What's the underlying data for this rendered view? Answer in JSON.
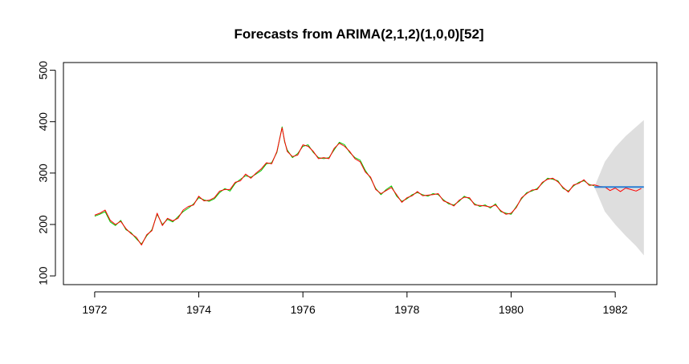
{
  "chart_data": {
    "type": "line",
    "title": "Forecasts from ARIMA(2,1,2)(1,0,0)[52]",
    "xlabel": "",
    "ylabel": "",
    "xlim": [
      1971.4,
      1982.8
    ],
    "ylim": [
      83,
      515
    ],
    "xticks": [
      1972,
      1974,
      1976,
      1978,
      1980,
      1982
    ],
    "xtick_labels": [
      "1972",
      "1974",
      "1976",
      "1978",
      "1980",
      "1982"
    ],
    "yticks": [
      100,
      200,
      300,
      400,
      500
    ],
    "ytick_labels": [
      "100",
      "200",
      "300",
      "400",
      "500"
    ],
    "grid": false,
    "legend": "none",
    "series": [
      {
        "role": "fitted",
        "color": "#00cc00",
        "x": [
          1972.0,
          1972.1,
          1972.2,
          1972.3,
          1972.4,
          1972.5,
          1972.6,
          1972.7,
          1972.8,
          1972.9,
          1973.0,
          1973.1,
          1973.2,
          1973.3,
          1973.4,
          1973.5,
          1973.6,
          1973.7,
          1973.8,
          1973.9,
          1974.0,
          1974.1,
          1974.2,
          1974.3,
          1974.4,
          1974.5,
          1974.6,
          1974.7,
          1974.8,
          1974.9,
          1975.0,
          1975.1,
          1975.2,
          1975.3,
          1975.4,
          1975.5,
          1975.6,
          1975.65,
          1975.7,
          1975.8,
          1975.9,
          1976.0,
          1976.1,
          1976.2,
          1976.3,
          1976.4,
          1976.5,
          1976.6,
          1976.7,
          1976.8,
          1976.9,
          1977.0,
          1977.1,
          1977.2,
          1977.3,
          1977.4,
          1977.5,
          1977.6,
          1977.7,
          1977.8,
          1977.9,
          1978.0,
          1978.1,
          1978.2,
          1978.3,
          1978.4,
          1978.5,
          1978.6,
          1978.7,
          1978.8,
          1978.9,
          1979.0,
          1979.1,
          1979.2,
          1979.3,
          1979.4,
          1979.5,
          1979.6,
          1979.7,
          1979.8,
          1979.9,
          1980.0,
          1980.1,
          1980.2,
          1980.3,
          1980.4,
          1980.5,
          1980.6,
          1980.7,
          1980.8,
          1980.9,
          1981.0,
          1981.1,
          1981.2,
          1981.3,
          1981.4,
          1981.5,
          1981.6
        ],
        "y": [
          216,
          220,
          225,
          205,
          198,
          208,
          190,
          184,
          172,
          162,
          178,
          190,
          220,
          200,
          210,
          205,
          215,
          225,
          232,
          240,
          252,
          248,
          245,
          250,
          262,
          270,
          265,
          280,
          288,
          295,
          292,
          298,
          305,
          318,
          320,
          340,
          390,
          360,
          345,
          330,
          338,
          352,
          355,
          340,
          330,
          328,
          330,
          345,
          360,
          355,
          340,
          330,
          325,
          305,
          290,
          270,
          258,
          268,
          275,
          255,
          245,
          250,
          258,
          262,
          258,
          255,
          260,
          258,
          248,
          240,
          238,
          245,
          255,
          250,
          240,
          235,
          238,
          232,
          240,
          225,
          222,
          220,
          235,
          250,
          262,
          265,
          270,
          280,
          290,
          288,
          285,
          270,
          265,
          275,
          282,
          285,
          278,
          275
        ]
      },
      {
        "role": "observed",
        "color": "#ff0000",
        "x": [
          1972.0,
          1972.1,
          1972.2,
          1972.3,
          1972.4,
          1972.5,
          1972.6,
          1972.7,
          1972.8,
          1972.9,
          1973.0,
          1973.1,
          1973.2,
          1973.3,
          1973.4,
          1973.5,
          1973.6,
          1973.7,
          1973.8,
          1973.9,
          1974.0,
          1974.1,
          1974.2,
          1974.3,
          1974.4,
          1974.5,
          1974.6,
          1974.7,
          1974.8,
          1974.9,
          1975.0,
          1975.1,
          1975.2,
          1975.3,
          1975.4,
          1975.5,
          1975.6,
          1975.65,
          1975.7,
          1975.8,
          1975.9,
          1976.0,
          1976.1,
          1976.2,
          1976.3,
          1976.4,
          1976.5,
          1976.6,
          1976.7,
          1976.8,
          1976.9,
          1977.0,
          1977.1,
          1977.2,
          1977.3,
          1977.4,
          1977.5,
          1977.6,
          1977.7,
          1977.8,
          1977.9,
          1978.0,
          1978.1,
          1978.2,
          1978.3,
          1978.4,
          1978.5,
          1978.6,
          1978.7,
          1978.8,
          1978.9,
          1979.0,
          1979.1,
          1979.2,
          1979.3,
          1979.4,
          1979.5,
          1979.6,
          1979.7,
          1979.8,
          1979.9,
          1980.0,
          1980.1,
          1980.2,
          1980.3,
          1980.4,
          1980.5,
          1980.6,
          1980.7,
          1980.8,
          1980.9,
          1981.0,
          1981.1,
          1981.2,
          1981.3,
          1981.4,
          1981.5,
          1981.6,
          1981.7,
          1981.8,
          1981.9,
          1982.0,
          1982.1,
          1982.2,
          1982.3,
          1982.4,
          1982.5
        ],
        "y": [
          218,
          222,
          228,
          208,
          200,
          206,
          192,
          182,
          175,
          160,
          180,
          188,
          222,
          198,
          212,
          207,
          212,
          228,
          235,
          238,
          255,
          246,
          247,
          252,
          265,
          268,
          268,
          282,
          285,
          298,
          290,
          300,
          308,
          320,
          318,
          342,
          388,
          362,
          342,
          332,
          335,
          355,
          352,
          342,
          328,
          330,
          328,
          348,
          358,
          352,
          342,
          328,
          322,
          302,
          292,
          268,
          260,
          266,
          272,
          258,
          243,
          252,
          256,
          264,
          256,
          257,
          258,
          260,
          246,
          242,
          236,
          247,
          253,
          252,
          238,
          237,
          236,
          234,
          238,
          227,
          220,
          222,
          233,
          252,
          260,
          267,
          268,
          282,
          288,
          290,
          283,
          272,
          263,
          277,
          280,
          287,
          276,
          277,
          274,
          273,
          266,
          271,
          264,
          271,
          268,
          265,
          270
        ]
      },
      {
        "role": "forecast",
        "color": "#2a7fd4",
        "x": [
          1981.6,
          1982.55
        ],
        "y": [
          273,
          273
        ]
      }
    ],
    "interval": {
      "role": "prediction-interval",
      "color": "#dedede",
      "x": [
        1981.6,
        1981.8,
        1982.0,
        1982.2,
        1982.4,
        1982.55
      ],
      "lower": [
        273,
        225,
        200,
        178,
        158,
        140
      ],
      "upper": [
        273,
        322,
        350,
        372,
        390,
        403
      ]
    }
  }
}
